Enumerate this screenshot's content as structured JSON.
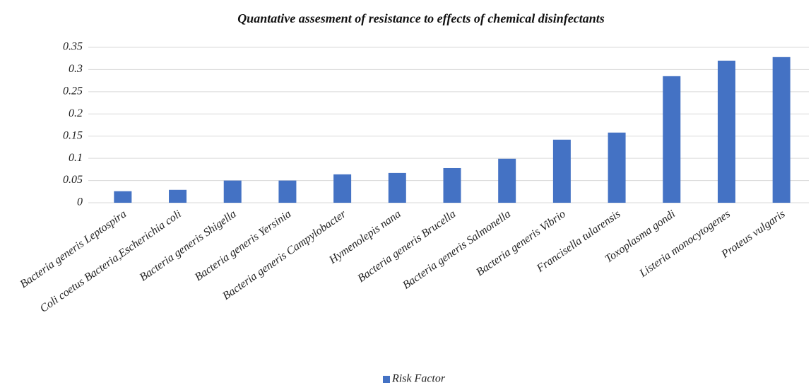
{
  "chart_data": {
    "type": "bar",
    "title": "Quantative assesment  of resistance  to effects of chemical disinfectants",
    "categories": [
      "Bacteria generis Leptospira",
      "Coli coetus Bacteria,Escherichia  coli",
      "Bacteria generis Shigella",
      "Bacteria generis  Yersinia",
      "Bacteria generis  Campylobacter",
      "Hymenolepis nana",
      "Bacteria generis Brucella",
      "Bacteria generis Salmonella",
      "Bacteria generis Vibrio",
      "Francisella tularensis",
      "Toxoplasma gondi",
      "Listeria monocytogenes",
      "Proteus vulgaris"
    ],
    "series": [
      {
        "name": "Risk Factor",
        "color": "#4472c4",
        "values": [
          0.026,
          0.029,
          0.05,
          0.05,
          0.064,
          0.067,
          0.078,
          0.099,
          0.142,
          0.158,
          0.285,
          0.32,
          0.328
        ]
      }
    ],
    "ylim": [
      0,
      0.35
    ],
    "yticks": [
      0,
      0.05,
      0.1,
      0.15,
      0.2,
      0.25,
      0.3,
      0.35
    ],
    "grid": true,
    "legend": "bottom"
  }
}
